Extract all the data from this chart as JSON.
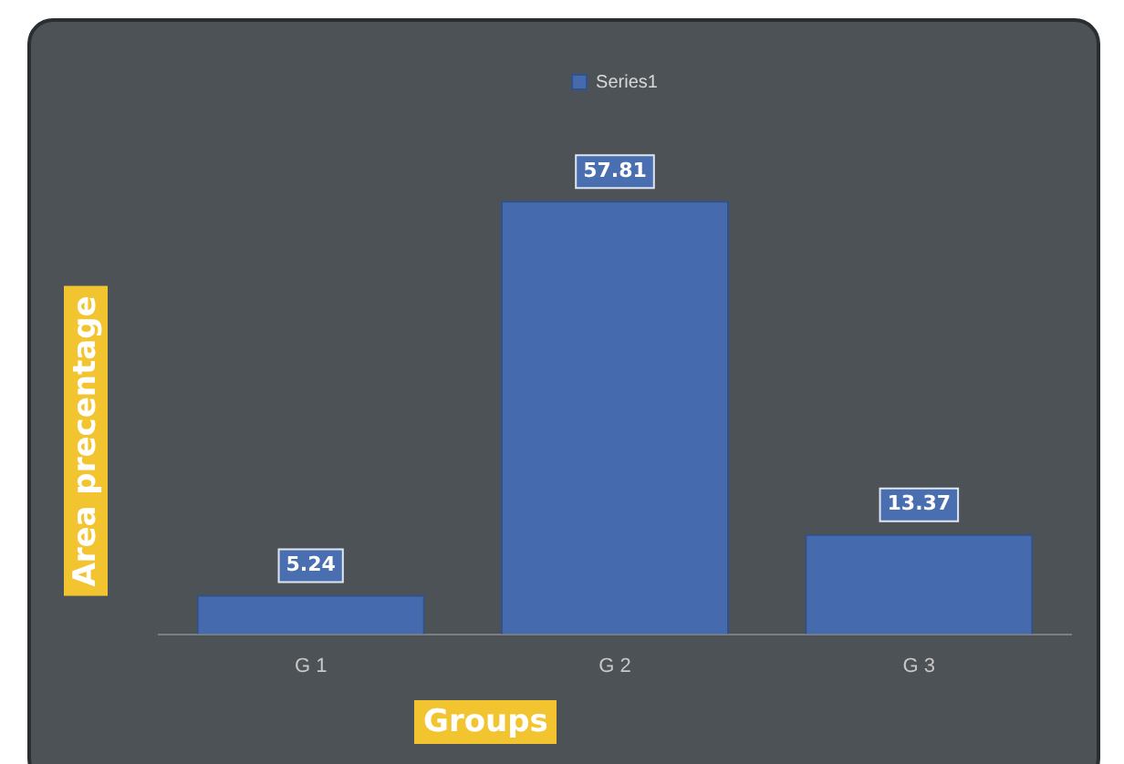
{
  "chart_data": {
    "type": "bar",
    "xlabel": "Groups",
    "ylabel": "Area precentage",
    "categories": [
      "G 1",
      "G 2",
      "G 3"
    ],
    "series": [
      {
        "name": "Series1",
        "color": "#4472c4",
        "values": [
          5.24,
          57.81,
          13.37
        ]
      }
    ],
    "data_labels": true,
    "legend": "top",
    "grid": false
  }
}
